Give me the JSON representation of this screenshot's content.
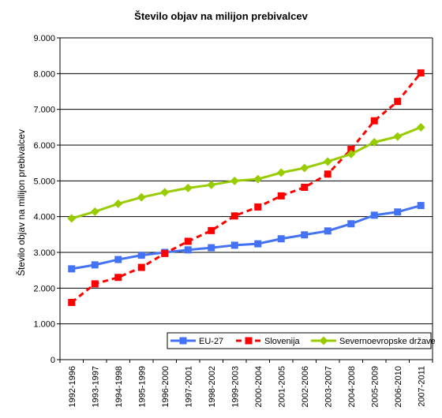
{
  "chart_data": {
    "type": "line",
    "title": "Število objav na milijon prebivalcev",
    "xlabel": "",
    "ylabel": "Število objav na milijon prebivalcev",
    "ylim": [
      0,
      9000
    ],
    "yticks": [
      0,
      1000,
      2000,
      3000,
      4000,
      5000,
      6000,
      7000,
      8000,
      9000
    ],
    "ytick_labels": [
      "0",
      "1.000",
      "2.000",
      "3.000",
      "4.000",
      "5.000",
      "6.000",
      "7.000",
      "8.000",
      "9.000"
    ],
    "grid": "horizontal",
    "legend_position": "bottom-right",
    "categories": [
      "1992-1996",
      "1993-1997",
      "1994-1998",
      "1995-1999",
      "1996-2000",
      "1997-2001",
      "1998-2002",
      "1999-2003",
      "2000-2004",
      "2001-2005",
      "2002-2006",
      "2003-2007",
      "2004-2008",
      "2005-2009",
      "2006-2010",
      "2007-2011"
    ],
    "series": [
      {
        "name": "EU-27",
        "color": "#4472f4",
        "line_style": "solid",
        "marker": "square",
        "values": [
          2540,
          2650,
          2800,
          2920,
          3000,
          3070,
          3130,
          3200,
          3240,
          3380,
          3490,
          3600,
          3800,
          4040,
          4130,
          4310
        ]
      },
      {
        "name": "Slovenija",
        "color": "#ff0000",
        "line_style": "dashed",
        "marker": "square",
        "values": [
          1600,
          2120,
          2300,
          2580,
          2970,
          3310,
          3610,
          4020,
          4270,
          4580,
          4820,
          5190,
          5880,
          6680,
          7220,
          8020
        ]
      },
      {
        "name": "Severnoevropske države",
        "color": "#99cc00",
        "line_style": "solid",
        "marker": "diamond",
        "values": [
          3950,
          4140,
          4360,
          4540,
          4680,
          4800,
          4890,
          5000,
          5050,
          5230,
          5360,
          5540,
          5750,
          6080,
          6240,
          6500
        ]
      }
    ]
  }
}
